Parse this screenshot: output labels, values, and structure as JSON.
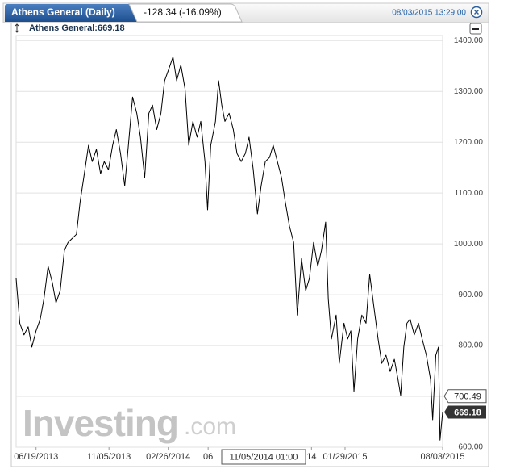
{
  "header": {
    "tab": "Athens General (Daily)",
    "change": "-128.34 (-16.09%)",
    "timestamp": "08/03/2015 13:29:00"
  },
  "chart_data": {
    "type": "line",
    "x": [
      "05/12/2013",
      "05/19/2013",
      "05/27/2013",
      "06/04/2013",
      "06/11/2013",
      "06/19/2013",
      "06/27/2013",
      "07/04/2013",
      "07/12/2013",
      "07/20/2013",
      "07/27/2013",
      "08/04/2013",
      "08/12/2013",
      "08/19/2013",
      "08/27/2013",
      "09/04/2013",
      "09/11/2013",
      "09/19/2013",
      "09/27/2013",
      "10/04/2013",
      "10/12/2013",
      "10/20/2013",
      "10/27/2013",
      "11/04/2013",
      "11/12/2013",
      "11/19/2013",
      "11/27/2013",
      "12/05/2013",
      "12/12/2013",
      "12/20/2013",
      "12/28/2013",
      "01/04/2014",
      "01/12/2014",
      "01/20/2014",
      "01/27/2014",
      "02/04/2014",
      "02/12/2014",
      "02/19/2014",
      "02/27/2014",
      "03/07/2014",
      "03/14/2014",
      "03/22/2014",
      "03/30/2014",
      "04/06/2014",
      "04/14/2014",
      "04/22/2014",
      "04/29/2014",
      "05/07/2014",
      "05/12/2014",
      "05/18/2014",
      "05/27/2014",
      "06/02/2014",
      "06/08/2014",
      "06/14/2014",
      "06/22/2014",
      "06/30/2014",
      "07/07/2014",
      "07/15/2014",
      "07/23/2014",
      "07/30/2014",
      "08/07/2014",
      "08/15/2014",
      "08/22/2014",
      "08/30/2014",
      "09/07/2014",
      "09/14/2014",
      "09/22/2014",
      "09/30/2014",
      "10/07/2014",
      "10/15/2014",
      "10/23/2014",
      "10/30/2014",
      "11/07/2014",
      "11/15/2014",
      "11/22/2014",
      "11/30/2014",
      "12/08/2014",
      "12/15/2014",
      "12/23/2014",
      "12/28/2014",
      "01/03/2015",
      "01/12/2015",
      "01/18/2015",
      "01/27/2015",
      "02/03/2015",
      "02/09/2015",
      "02/15/2015",
      "02/22/2015",
      "03/02/2015",
      "03/10/2015",
      "03/17/2015",
      "03/25/2015",
      "04/02/2015",
      "04/09/2015",
      "04/17/2015",
      "04/25/2015",
      "05/03/2015",
      "05/10/2015",
      "05/15/2015",
      "05/21/2015",
      "05/27/2015",
      "06/02/2015",
      "06/10/2015",
      "06/18/2015",
      "06/25/2015",
      "07/03/2015",
      "07/11/2015",
      "07/15/2015",
      "07/21/2015",
      "07/26/2015",
      "07/29/2015",
      "08/03/2015"
    ],
    "series": [
      {
        "name": "Athens General:669.18",
        "color": "#000000",
        "values": [
          932,
          844,
          821,
          837,
          797,
          829,
          852,
          892,
          956,
          924,
          884,
          908,
          987,
          1003,
          1011,
          1019,
          1083,
          1138,
          1194,
          1162,
          1186,
          1138,
          1162,
          1146,
          1194,
          1225,
          1178,
          1114,
          1194,
          1289,
          1257,
          1210,
          1130,
          1257,
          1273,
          1225,
          1257,
          1321,
          1344,
          1368,
          1321,
          1352,
          1305,
          1194,
          1241,
          1210,
          1241,
          1162,
          1067,
          1194,
          1241,
          1321,
          1273,
          1241,
          1257,
          1225,
          1178,
          1162,
          1178,
          1210,
          1146,
          1059,
          1114,
          1162,
          1170,
          1194,
          1162,
          1130,
          1083,
          1035,
          1003,
          860,
          971,
          908,
          932,
          1003,
          956,
          987,
          1043,
          892,
          813,
          860,
          765,
          844,
          813,
          829,
          710,
          813,
          860,
          844,
          940,
          876,
          813,
          765,
          781,
          749,
          773,
          733,
          702,
          797,
          844,
          852,
          821,
          844,
          813,
          781,
          733,
          654,
          781,
          797,
          614,
          669.18
        ]
      }
    ],
    "xlim": [
      "05/12/2013",
      "08/03/2015"
    ],
    "xticks": [
      "06/19/2013",
      "11/05/2013",
      "02/26/2014",
      {
        "value": "05/13/2014",
        "label": "06"
      },
      {
        "value": "11/26/2014",
        "label": "14"
      },
      "01/29/2015",
      "08/03/2015"
    ],
    "ylim": [
      600,
      1410
    ],
    "yticks": [
      {
        "value": 600,
        "label": "600.00"
      },
      {
        "value": 700,
        "label": "700.00"
      },
      {
        "value": 800,
        "label": "800.00"
      },
      {
        "value": 900,
        "label": "900.00"
      },
      {
        "value": 1000,
        "label": "1000.00"
      },
      {
        "value": 1100,
        "label": "1100.00"
      },
      {
        "value": 1200,
        "label": "1200.00"
      },
      {
        "value": 1300,
        "label": "1300.00"
      },
      {
        "value": 1400,
        "label": "1400.00"
      }
    ],
    "grid": true,
    "crosshair_value": 700.49,
    "crosshair_x_label": "11/05/2014 01:00",
    "last_value": 669.18,
    "watermark": {
      "main": "Investing",
      "suffix": ".com"
    }
  }
}
